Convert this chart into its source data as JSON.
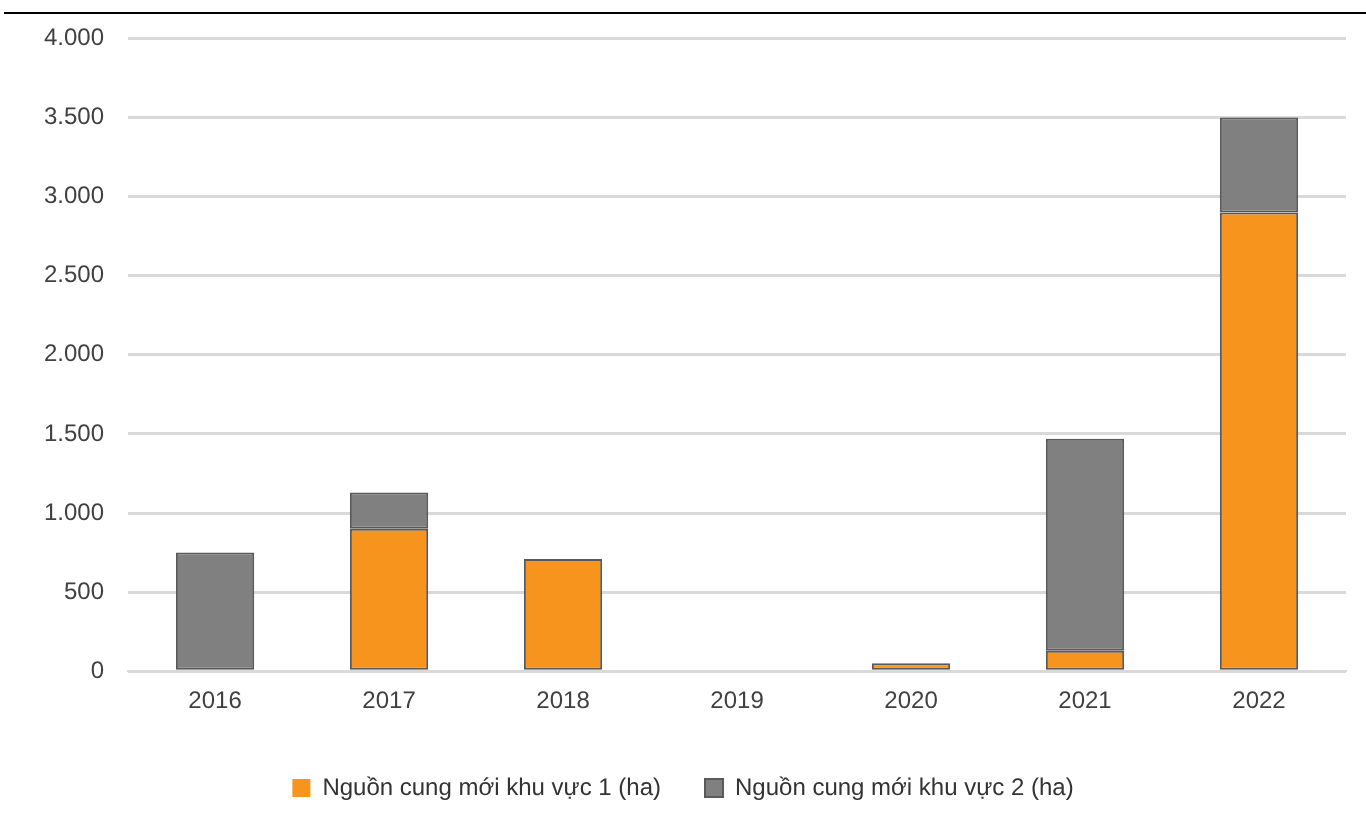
{
  "chart_data": {
    "type": "bar",
    "stacked": true,
    "categories": [
      "2016",
      "2017",
      "2018",
      "2019",
      "2020",
      "2021",
      "2022"
    ],
    "series": [
      {
        "name": "Nguồn cung mới khu vực 1 (ha)",
        "color": "#f7941d",
        "values": [
          0,
          900,
          710,
          0,
          50,
          130,
          2900
        ]
      },
      {
        "name": "Nguồn cung mới khu vực 2 (ha)",
        "color": "#808080",
        "values": [
          750,
          230,
          0,
          0,
          0,
          1340,
          600
        ]
      }
    ],
    "ylim": [
      0,
      4000
    ],
    "yticks": [
      {
        "value": 0,
        "label": "0"
      },
      {
        "value": 500,
        "label": "500"
      },
      {
        "value": 1000,
        "label": "1.000"
      },
      {
        "value": 1500,
        "label": "1.500"
      },
      {
        "value": 2000,
        "label": "2.000"
      },
      {
        "value": 2500,
        "label": "2.500"
      },
      {
        "value": 3000,
        "label": "3.000"
      },
      {
        "value": 3500,
        "label": "3.500"
      },
      {
        "value": 4000,
        "label": "4.000"
      }
    ],
    "grid": "y",
    "legend": "bottom"
  }
}
